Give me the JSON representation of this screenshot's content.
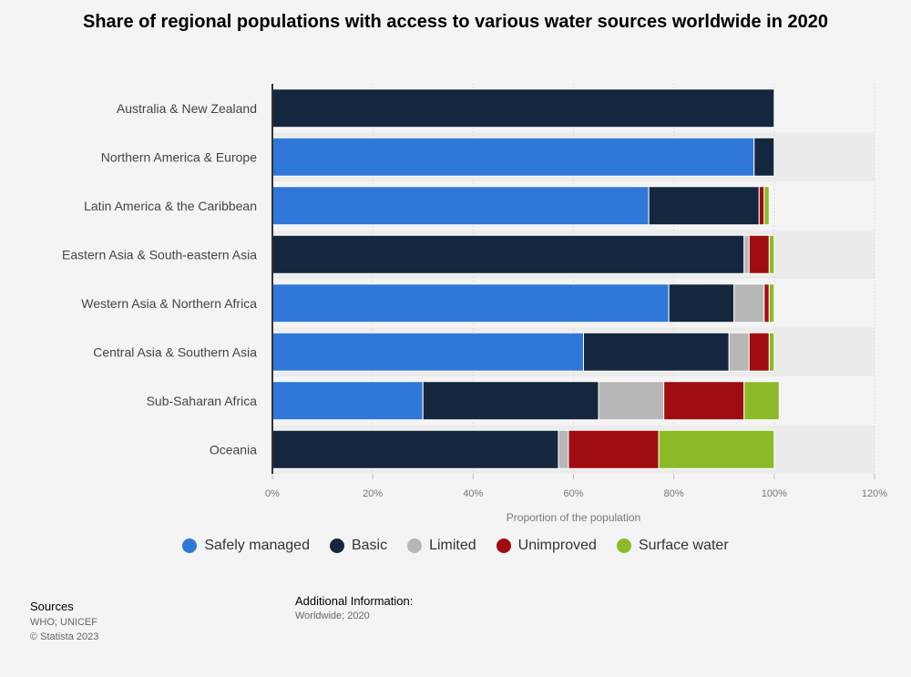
{
  "chart_data": {
    "type": "bar",
    "orientation": "horizontal",
    "stacked": true,
    "title": "Share of regional populations with access to various water sources worldwide in 2020",
    "xlabel": "Proportion of the population",
    "ylabel": "",
    "xlim": [
      0,
      120
    ],
    "x_ticks": [
      "0%",
      "20%",
      "40%",
      "60%",
      "80%",
      "100%",
      "120%"
    ],
    "grid": true,
    "legend_position": "bottom",
    "categories": [
      "Australia & New Zealand",
      "Northern America & Europe",
      "Latin America & the Caribbean",
      "Eastern Asia & South-eastern Asia",
      "Western Asia & Northern Africa",
      "Central Asia & Southern Asia",
      "Sub-Saharan Africa",
      "Oceania"
    ],
    "series": [
      {
        "name": "Safely managed",
        "color": "#2f78d9",
        "values": [
          0,
          96,
          75,
          0,
          79,
          62,
          30,
          0
        ]
      },
      {
        "name": "Basic",
        "color": "#14273f",
        "values": [
          100,
          4,
          22,
          94,
          13,
          29,
          35,
          57
        ]
      },
      {
        "name": "Limited",
        "color": "#b7b7b7",
        "values": [
          0,
          0,
          0,
          1,
          6,
          4,
          13,
          2
        ]
      },
      {
        "name": "Unimproved",
        "color": "#a00d10",
        "values": [
          0,
          0,
          1,
          4,
          1,
          4,
          16,
          18
        ]
      },
      {
        "name": "Surface water",
        "color": "#8bbb26",
        "values": [
          0,
          0,
          1,
          1,
          1,
          1,
          7,
          23
        ]
      }
    ]
  },
  "footer": {
    "sources_heading": "Sources",
    "sources_line1": "WHO; UNICEF",
    "sources_line2": "© Statista 2023",
    "info_heading": "Additional Information:",
    "info_text": "Worldwide; 2020"
  }
}
